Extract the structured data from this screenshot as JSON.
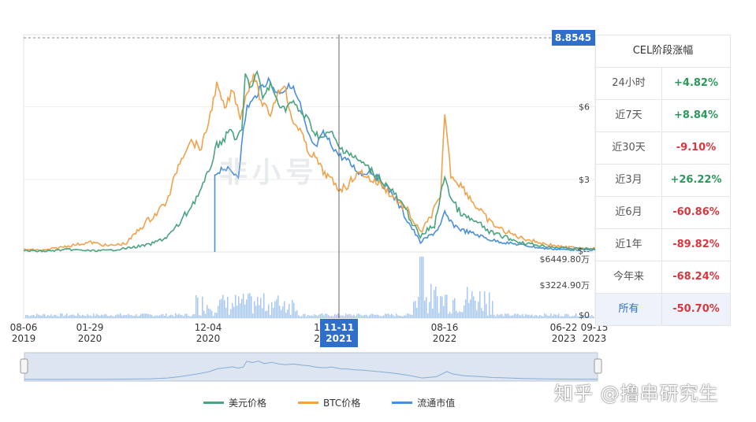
{
  "chart_data": {
    "type": "line",
    "current_price_tag": "8.8545",
    "x_ticks": [
      {
        "d": "08-06",
        "y": "2019"
      },
      {
        "d": "01-29",
        "y": "2020"
      },
      {
        "d": "12-04",
        "y": "2020"
      },
      {
        "d": "1",
        "y": "2"
      },
      {
        "d": "08-16",
        "y": "2022"
      },
      {
        "d": "06-22",
        "y": "2023"
      },
      {
        "d": "09-15",
        "y": "2023"
      }
    ],
    "crosshair_label": {
      "d": "11-11",
      "y": "2021"
    },
    "y_ticks_price": [
      "$6",
      "$3",
      "$--"
    ],
    "y_ticks_volume": [
      "$6449.80万",
      "$3224.90万",
      "$0"
    ],
    "price_range": [
      0,
      8.8545
    ],
    "volume_range": [
      0,
      6449.8
    ],
    "x_range": [
      "2019-08-06",
      "2023-09-15"
    ],
    "grid": true,
    "legend_position": "bottom",
    "series": [
      {
        "name": "美元价格",
        "color": "#4ba37f",
        "points": [
          [
            "2019-08-06",
            0.05
          ],
          [
            "2019-10-01",
            0.03
          ],
          [
            "2019-12-01",
            0.1
          ],
          [
            "2020-01-29",
            0.05
          ],
          [
            "2020-03-15",
            0.06
          ],
          [
            "2020-05-01",
            0.15
          ],
          [
            "2020-07-01",
            0.3
          ],
          [
            "2020-08-15",
            0.6
          ],
          [
            "2020-09-15",
            1.1
          ],
          [
            "2020-10-15",
            1.8
          ],
          [
            "2020-11-15",
            2.6
          ],
          [
            "2020-12-04",
            3.3
          ],
          [
            "2020-12-25",
            4.4
          ],
          [
            "2021-01-15",
            4.7
          ],
          [
            "2021-02-01",
            5.1
          ],
          [
            "2021-02-15",
            4.6
          ],
          [
            "2021-03-01",
            5.0
          ],
          [
            "2021-03-10",
            7.3
          ],
          [
            "2021-03-25",
            6.8
          ],
          [
            "2021-04-10",
            7.4
          ],
          [
            "2021-04-25",
            6.4
          ],
          [
            "2021-05-15",
            6.9
          ],
          [
            "2021-06-01",
            6.3
          ],
          [
            "2021-06-20",
            5.9
          ],
          [
            "2021-07-10",
            6.2
          ],
          [
            "2021-08-01",
            5.8
          ],
          [
            "2021-08-20",
            5.5
          ],
          [
            "2021-09-10",
            4.9
          ],
          [
            "2021-10-01",
            4.7
          ],
          [
            "2021-10-20",
            5.0
          ],
          [
            "2021-11-11",
            4.3
          ],
          [
            "2021-12-01",
            4.2
          ],
          [
            "2021-12-20",
            3.9
          ],
          [
            "2022-01-10",
            3.7
          ],
          [
            "2022-02-01",
            3.4
          ],
          [
            "2022-03-01",
            3.0
          ],
          [
            "2022-04-01",
            2.5
          ],
          [
            "2022-05-10",
            1.6
          ],
          [
            "2022-06-13",
            0.6
          ],
          [
            "2022-07-01",
            0.9
          ],
          [
            "2022-07-20",
            1.1
          ],
          [
            "2022-08-05",
            2.3
          ],
          [
            "2022-08-16",
            3.2
          ],
          [
            "2022-09-01",
            2.2
          ],
          [
            "2022-10-01",
            1.5
          ],
          [
            "2022-11-10",
            1.2
          ],
          [
            "2022-12-15",
            0.8
          ],
          [
            "2023-01-15",
            0.65
          ],
          [
            "2023-03-01",
            0.4
          ],
          [
            "2023-05-01",
            0.25
          ],
          [
            "2023-06-22",
            0.16
          ],
          [
            "2023-09-15",
            0.12
          ]
        ]
      },
      {
        "name": "BTC价格",
        "color": "#f0a24b",
        "points": [
          [
            "2019-08-06",
            0.1
          ],
          [
            "2019-10-01",
            0.07
          ],
          [
            "2019-12-01",
            0.25
          ],
          [
            "2020-01-29",
            0.4
          ],
          [
            "2020-03-15",
            0.25
          ],
          [
            "2020-05-01",
            0.35
          ],
          [
            "2020-06-20",
            1.2
          ],
          [
            "2020-07-20",
            1.6
          ],
          [
            "2020-08-20",
            2.2
          ],
          [
            "2020-09-15",
            3.6
          ],
          [
            "2020-10-15",
            4.6
          ],
          [
            "2020-11-15",
            4.3
          ],
          [
            "2020-12-04",
            5.4
          ],
          [
            "2020-12-25",
            6.9
          ],
          [
            "2021-01-15",
            5.9
          ],
          [
            "2021-02-05",
            6.7
          ],
          [
            "2021-02-25",
            5.6
          ],
          [
            "2021-03-15",
            6.6
          ],
          [
            "2021-04-01",
            7.4
          ],
          [
            "2021-04-20",
            6.2
          ],
          [
            "2021-05-15",
            5.7
          ],
          [
            "2021-06-01",
            6.5
          ],
          [
            "2021-06-20",
            7.0
          ],
          [
            "2021-07-10",
            5.4
          ],
          [
            "2021-08-01",
            5.1
          ],
          [
            "2021-08-20",
            4.2
          ],
          [
            "2021-09-10",
            3.9
          ],
          [
            "2021-10-01",
            3.3
          ],
          [
            "2021-10-20",
            3.0
          ],
          [
            "2021-11-11",
            2.6
          ],
          [
            "2021-12-01",
            2.7
          ],
          [
            "2021-12-20",
            3.1
          ],
          [
            "2022-01-10",
            3.3
          ],
          [
            "2022-02-01",
            3.0
          ],
          [
            "2022-03-01",
            2.8
          ],
          [
            "2022-04-01",
            2.3
          ],
          [
            "2022-05-10",
            1.7
          ],
          [
            "2022-06-13",
            0.8
          ],
          [
            "2022-07-01",
            1.2
          ],
          [
            "2022-07-20",
            1.8
          ],
          [
            "2022-08-05",
            2.2
          ],
          [
            "2022-08-16",
            5.8
          ],
          [
            "2022-09-01",
            3.2
          ],
          [
            "2022-10-01",
            2.7
          ],
          [
            "2022-11-10",
            1.8
          ],
          [
            "2022-12-15",
            1.2
          ],
          [
            "2023-01-15",
            0.9
          ],
          [
            "2023-03-01",
            0.6
          ],
          [
            "2023-05-01",
            0.35
          ],
          [
            "2023-06-22",
            0.2
          ],
          [
            "2023-09-15",
            0.15
          ]
        ]
      },
      {
        "name": "流通市值",
        "color": "#4a8fdb",
        "points": [
          [
            "2020-12-20",
            3.2
          ],
          [
            "2021-01-10",
            3.5
          ],
          [
            "2021-02-01",
            3.3
          ],
          [
            "2021-02-20",
            3.2
          ],
          [
            "2021-03-05",
            5.0
          ],
          [
            "2021-03-15",
            6.0
          ],
          [
            "2021-04-01",
            6.3
          ],
          [
            "2021-04-20",
            6.8
          ],
          [
            "2021-05-10",
            7.1
          ],
          [
            "2021-06-01",
            6.6
          ],
          [
            "2021-06-20",
            6.7
          ],
          [
            "2021-07-10",
            6.9
          ],
          [
            "2021-08-01",
            6.1
          ],
          [
            "2021-08-20",
            4.9
          ],
          [
            "2021-09-10",
            4.3
          ],
          [
            "2021-10-01",
            4.9
          ],
          [
            "2021-10-20",
            4.5
          ],
          [
            "2021-11-11",
            4.0
          ],
          [
            "2021-12-01",
            3.8
          ],
          [
            "2021-12-20",
            3.5
          ],
          [
            "2022-01-10",
            3.2
          ],
          [
            "2022-02-01",
            3.4
          ],
          [
            "2022-03-01",
            2.9
          ],
          [
            "2022-04-01",
            2.4
          ],
          [
            "2022-05-10",
            1.3
          ],
          [
            "2022-06-13",
            0.4
          ],
          [
            "2022-07-01",
            0.6
          ],
          [
            "2022-07-20",
            0.8
          ],
          [
            "2022-08-05",
            1.1
          ],
          [
            "2022-08-16",
            1.6
          ],
          [
            "2022-09-01",
            1.2
          ],
          [
            "2022-10-01",
            0.9
          ],
          [
            "2022-11-10",
            0.7
          ],
          [
            "2022-12-15",
            0.5
          ],
          [
            "2023-01-15",
            0.4
          ],
          [
            "2023-03-01",
            0.3
          ],
          [
            "2023-05-01",
            0.15
          ],
          [
            "2023-06-22",
            0.1
          ],
          [
            "2023-09-15",
            0.08
          ]
        ]
      }
    ]
  },
  "stats_table": {
    "title": "CEL阶段涨幅",
    "rows": [
      {
        "label": "24小时",
        "value": "+4.82%",
        "color": "#2a9a5b"
      },
      {
        "label": "近7天",
        "value": "+8.84%",
        "color": "#2a9a5b"
      },
      {
        "label": "近30天",
        "value": "-9.10%",
        "color": "#d9363e"
      },
      {
        "label": "近3月",
        "value": "+26.22%",
        "color": "#2a9a5b"
      },
      {
        "label": "近6月",
        "value": "-60.86%",
        "color": "#d9363e"
      },
      {
        "label": "近1年",
        "value": "-89.82%",
        "color": "#d9363e"
      },
      {
        "label": "今年来",
        "value": "-68.24%",
        "color": "#d9363e"
      },
      {
        "label": "所有",
        "value": "-50.70%",
        "color": "#d9363e",
        "active": true
      }
    ]
  },
  "legend": [
    {
      "label": "美元价格",
      "color": "#4ba37f"
    },
    {
      "label": "BTC价格",
      "color": "#f0a24b"
    },
    {
      "label": "流通市值",
      "color": "#4a8fdb"
    }
  ],
  "watermark": "知乎 @撸串研究生"
}
